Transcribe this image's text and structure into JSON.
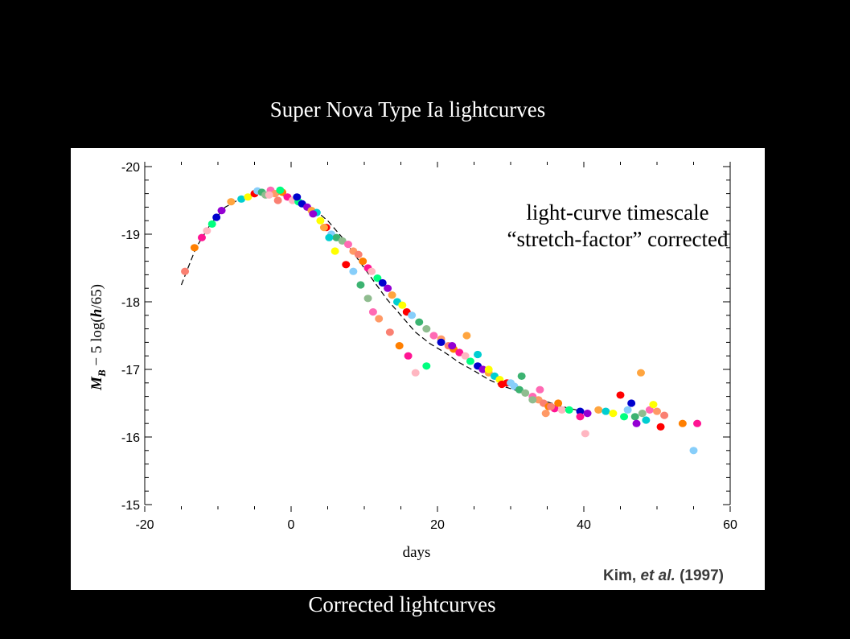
{
  "slide": {
    "title": "Super Nova Type Ia lightcurves",
    "caption": "Corrected lightcurves"
  },
  "colors": {
    "background": "#000000",
    "text": "#ffffff",
    "panel": "#ffffff",
    "points": [
      "#fa8072",
      "#ff7f00",
      "#ff1493",
      "#ffb6c1",
      "#00ff7f",
      "#0000cd",
      "#9400d3",
      "#ffa53f",
      "#00ced1",
      "#ffff00",
      "#ff0000",
      "#87cefa",
      "#3cb371",
      "#8fbc8f",
      "#ff69b4",
      "#ff9966"
    ]
  },
  "chart_data": {
    "type": "scatter",
    "title": "",
    "xlabel": "days",
    "ylabel": "M_B − 5 log(h/65)",
    "ylabel_parts": {
      "main": "M",
      "sub": "B",
      "rest1": " − 5 log(",
      "h": "h",
      "rest2": "/65)"
    },
    "xlim": [
      -20,
      60
    ],
    "ylim": [
      -15,
      -20
    ],
    "y_inverted": true,
    "x_ticks": [
      -20,
      0,
      20,
      40,
      60
    ],
    "x_tick_labels": [
      "-20",
      "0",
      "20",
      "40",
      "60"
    ],
    "y_ticks": [
      -20,
      -19,
      -18,
      -17,
      -16,
      -15
    ],
    "y_tick_labels": [
      "-20",
      "-19",
      "-18",
      "-17",
      "-16",
      "-15"
    ],
    "grid": false,
    "annotation": {
      "line1": "light-curve timescale",
      "line2": "“stretch-factor” corrected"
    },
    "citation": {
      "author": "Kim,",
      "etal": "et al.",
      "year": "(1997)"
    },
    "template_curve": {
      "x": [
        -15.0,
        -13.0,
        -11.0,
        -9.0,
        -7.0,
        -5.0,
        -3.0,
        -1.0,
        1.0,
        3.0,
        5.0,
        7.0,
        9.0,
        11.0,
        13.0,
        15.0,
        17.0,
        19.0,
        21.0,
        23.0,
        25.0,
        27.0,
        29.0,
        31.0,
        33.0,
        35.0,
        37.0,
        39.0
      ],
      "y": [
        -18.25,
        -18.8,
        -19.15,
        -19.4,
        -19.52,
        -19.6,
        -19.62,
        -19.57,
        -19.5,
        -19.38,
        -19.2,
        -18.95,
        -18.65,
        -18.35,
        -18.05,
        -17.8,
        -17.55,
        -17.38,
        -17.25,
        -17.1,
        -16.98,
        -16.85,
        -16.75,
        -16.68,
        -16.6,
        -16.52,
        -16.45,
        -16.4
      ]
    },
    "series": [
      {
        "x": [
          -14.5,
          -13.2,
          -12.2,
          -11.5,
          -10.8,
          -10.2,
          -9.5,
          -8.2,
          -6.8,
          -5.9,
          -5.0,
          -4.6,
          -4.0,
          -3.5,
          -2.8,
          -2.2,
          -1.8,
          -1.2,
          -0.5,
          0.2,
          1.0,
          1.5,
          2.2,
          2.8,
          3.5,
          4.0,
          4.8,
          5.5,
          6.2,
          7.0,
          7.8,
          8.5,
          9.2,
          9.8,
          10.5,
          11.0,
          11.8,
          12.5,
          13.2,
          13.8,
          14.5,
          15.2,
          15.8,
          16.5,
          17.5,
          18.5,
          19.5,
          20.5,
          21.5,
          22.2,
          23.0,
          23.8,
          24.5,
          25.5,
          26.2,
          27.0,
          27.8,
          28.5,
          29.5,
          30.5,
          31.2,
          32.0,
          33.0,
          33.8,
          34.5,
          35.2,
          36.0,
          37.0,
          38.0,
          39.5,
          40.5,
          42.0,
          43.0,
          44.0,
          45.0,
          46.0,
          47.0,
          48.0,
          49.0,
          50.0,
          51.0,
          53.5,
          55.5
        ],
        "y": [
          -18.45,
          -18.8,
          -18.95,
          -19.05,
          -19.15,
          -19.25,
          -19.35,
          -19.48,
          -19.52,
          -19.55,
          -19.6,
          -19.64,
          -19.62,
          -19.58,
          -19.65,
          -19.6,
          -19.5,
          -19.62,
          -19.55,
          -19.5,
          -19.48,
          -19.45,
          -19.4,
          -19.35,
          -19.32,
          -19.2,
          -19.1,
          -19.0,
          -18.95,
          -18.9,
          -18.85,
          -18.75,
          -18.7,
          -18.6,
          -18.5,
          -18.45,
          -18.35,
          -18.28,
          -18.2,
          -18.1,
          -18.0,
          -17.95,
          -17.85,
          -17.8,
          -17.7,
          -17.6,
          -17.5,
          -17.45,
          -17.35,
          -17.3,
          -17.25,
          -17.2,
          -17.12,
          -17.05,
          -17.0,
          -16.95,
          -16.9,
          -16.85,
          -16.8,
          -16.75,
          -16.7,
          -16.65,
          -16.6,
          -16.55,
          -16.5,
          -16.45,
          -16.42,
          -16.4,
          -16.4,
          -16.38,
          -16.35,
          -16.4,
          -16.38,
          -16.35,
          -16.62,
          -16.4,
          -16.3,
          -16.35,
          -16.4,
          -16.38,
          -16.32,
          -16.2,
          -16.2
        ]
      },
      {
        "x": [
          -3.0,
          -1.5,
          0.8,
          3.0,
          4.5,
          5.2,
          6.0,
          7.5,
          8.5,
          9.5,
          10.5,
          11.2,
          12.0,
          13.5,
          14.8,
          16.0,
          17.0,
          18.5,
          20.5,
          22.0,
          24.0,
          25.5,
          27.0,
          28.8,
          30.0,
          31.5,
          33.0,
          34.0,
          34.8,
          35.5,
          36.5,
          39.5,
          40.2,
          45.5,
          46.5,
          47.2,
          47.8,
          48.5,
          49.5,
          50.5,
          55.0
        ],
        "y": [
          -19.58,
          -19.65,
          -19.55,
          -19.3,
          -19.1,
          -18.95,
          -18.75,
          -18.55,
          -18.45,
          -18.25,
          -18.05,
          -17.85,
          -17.75,
          -17.55,
          -17.35,
          -17.2,
          -16.95,
          -17.05,
          -17.4,
          -17.35,
          -17.5,
          -17.22,
          -17.0,
          -16.78,
          -16.8,
          -16.9,
          -16.55,
          -16.7,
          -16.35,
          -16.45,
          -16.5,
          -16.3,
          -16.05,
          -16.3,
          -16.5,
          -16.2,
          -16.95,
          -16.25,
          -16.48,
          -16.15,
          -15.8
        ]
      }
    ]
  }
}
